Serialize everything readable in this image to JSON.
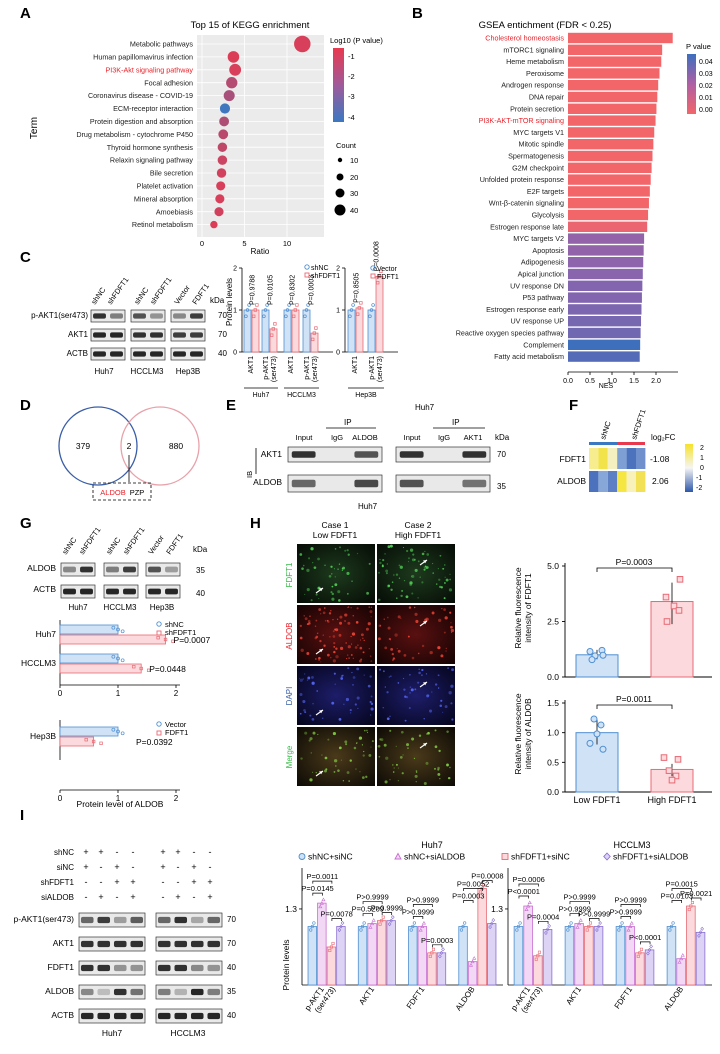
{
  "panels": {
    "A": {
      "letter": "A",
      "title": "Top 15 of KEGG enrichment",
      "ylabel": "Term",
      "xlabel": "Ratio",
      "legend_color_title": "Log10 (P value)",
      "legend_color_ticks": [
        "-1",
        "-2",
        "-3",
        "-4"
      ],
      "legend_size_title": "Count",
      "legend_size_values": [
        "10",
        "20",
        "30",
        "40"
      ],
      "highlight_color": "#e8232b"
    },
    "B": {
      "letter": "B",
      "title": "GSEA entichment (FDR < 0.25)",
      "xlabel": "NES",
      "legend_title": "P value",
      "legend_ticks": [
        "0.04",
        "0.03",
        "0.02",
        "0.01",
        "0.00"
      ]
    },
    "C": {
      "letter": "C",
      "blot_lanes": [
        "shNC",
        "shFDFT1",
        "shNC",
        "shFDFT1",
        "Vector",
        "FDFT1"
      ],
      "blot_rows": [
        "p-AKT1(ser473)",
        "AKT1",
        "ACTB"
      ],
      "blot_kda": [
        "70",
        "70",
        "40"
      ],
      "kda_label": "kDa",
      "cell_lines": [
        "Huh7",
        "HCCLM3",
        "Hep3B"
      ],
      "ylabel": "Protein levels",
      "legend1": [
        "shNC",
        "shFDFT1"
      ],
      "legend2": [
        "Vector",
        "FDFT1"
      ],
      "pvalues": [
        "P=0.9788",
        "P=0.0105",
        "P=0.8302",
        "P=0.0003",
        "P=0.8505",
        "P=0.0008"
      ],
      "group_labels": [
        "AKT1",
        "p-AKT1 (ser473)"
      ],
      "sub_labels": [
        "Huh7",
        "HCCLM3",
        "Hep3B"
      ]
    },
    "D": {
      "letter": "D",
      "left_count": "379",
      "overlap_count": "2",
      "right_count": "880",
      "genes": [
        "ALDOB",
        "PZP"
      ]
    },
    "E": {
      "letter": "E",
      "top_label": "Huh7",
      "bottom_label": "Huh7",
      "ib_label": "IB",
      "ip_label": "IP",
      "lanes_left": [
        "Input",
        "IgG",
        "ALDOB"
      ],
      "lanes_right": [
        "Input",
        "IgG",
        "AKT1"
      ],
      "rows": [
        "AKT1",
        "ALDOB"
      ],
      "kda_label": "kDa",
      "kda": [
        "70",
        "35"
      ]
    },
    "F": {
      "letter": "F",
      "columns": [
        "shNC",
        "shFDFT1"
      ],
      "rows": [
        "FDFT1",
        "ALDOB"
      ],
      "log2fc_title": "log₂FC",
      "log2fc_values": [
        "-1.08",
        "2.06"
      ],
      "scale_ticks": [
        "2",
        "1",
        "0",
        "-1",
        "-2"
      ]
    },
    "G": {
      "letter": "G",
      "blot_lanes": [
        "shNC",
        "shFDFT1",
        "shNC",
        "shFDFT1",
        "Vector",
        "FDFT1"
      ],
      "blot_rows": [
        "ALDOB",
        "ACTB"
      ],
      "kda_label": "kDa",
      "kda": [
        "35",
        "40"
      ],
      "cell_lines": [
        "Huh7",
        "HCCLM3",
        "Hep3B"
      ],
      "legend1": [
        "shNC",
        "shFDFT1"
      ],
      "legend2": [
        "Vector",
        "FDFT1"
      ],
      "pvalues": [
        "P=0.0007",
        "P=0.0448",
        "P=0.0392"
      ],
      "xticks": [
        "0",
        "1",
        "2"
      ],
      "xlabel": "Protein level of ALDOB"
    },
    "H": {
      "letter": "H",
      "case1": [
        "Case 1",
        "Low FDFT1"
      ],
      "case2": [
        "Case 2",
        "High FDFT1"
      ],
      "row_labels": [
        "FDFT1",
        "ALDOB",
        "DAPI",
        "Merge"
      ],
      "chart1_ylabel": [
        "Relative fluorescence",
        "intensity of FDFT1"
      ],
      "chart1_yticks": [
        "0.0",
        "2.5",
        "5.0"
      ],
      "chart1_p": "P=0.0003",
      "chart2_ylabel": [
        "Relative fluorescence",
        "intensity of ALDOB"
      ],
      "chart2_yticks": [
        "0.0",
        "0.5",
        "1.0",
        "1.5"
      ],
      "chart2_p": "P=0.0011",
      "xcats": [
        "Low FDFT1",
        "High FDFT1"
      ]
    },
    "I": {
      "letter": "I",
      "conditions": [
        "shNC",
        "siNC",
        "shFDFT1",
        "siALDOB"
      ],
      "signs_group": [
        [
          "+",
          "+",
          "-",
          "-"
        ],
        [
          "+",
          "-",
          "+",
          "-"
        ],
        [
          "-",
          "-",
          "+",
          "+"
        ],
        [
          "-",
          "+",
          "-",
          "+"
        ]
      ],
      "blot_rows": [
        "p-AKT1(ser473)",
        "AKT1",
        "FDFT1",
        "ALDOB",
        "ACTB"
      ],
      "blot_kda": [
        "70",
        "70",
        "40",
        "35",
        "40"
      ],
      "cell_lines": [
        "Huh7",
        "HCCLM3"
      ],
      "legend": [
        "shNC+siNC",
        "shNC+siALDOB",
        "shFDFT1+siNC",
        "shFDFT1+siALDOB"
      ],
      "ylabel": "Protein levels",
      "ytick": "1.3",
      "categories": [
        "p-AKT1 (ser473)",
        "AKT1",
        "FDFT1",
        "ALDOB"
      ],
      "chart_titles": [
        "Huh7",
        "HCCLM3"
      ],
      "huh7_p": [
        "P=0.0145",
        "P=0.0011",
        "P=0.0078",
        "P=0.5209",
        "P>0.9999",
        "P>0.9999",
        "P>0.9999",
        "P>0.9999",
        "P=0.0003",
        "P=0.0003",
        "P=0.0052",
        "P=0.0008"
      ],
      "hcclm3_p": [
        "P<0.0001",
        "P=0.0006",
        "P=0.0004",
        "P>0.9999",
        "P>0.9999",
        "P>0.9999",
        "P>0.9999",
        "P>0.9999",
        "P<0.0001",
        "P=0.0103",
        "P=0.0015",
        "P=0.0021"
      ]
    }
  },
  "chart_data": [
    {
      "type": "scatter",
      "title": "Top 15 of KEGG enrichment",
      "xlabel": "Ratio",
      "ylabel": "Term",
      "xlim": [
        0,
        14
      ],
      "xticks": [
        0,
        5,
        10
      ],
      "categories": [
        "Metabolic pathways",
        "Human papillomavirus infection",
        "PI3K-Akt signaling pathway",
        "Focal adhesion",
        "Coronavirus disease - COVID-19",
        "ECM-receptor interaction",
        "Protein digestion and absorption",
        "Drug metabolism - cytochrome P450",
        "Thyroid hormone synthesis",
        "Relaxin signaling pathway",
        "Bile secretion",
        "Platelet activation",
        "Mineral absorption",
        "Amoebiasis",
        "Retinol metabolism"
      ],
      "x": [
        11.8,
        3.7,
        3.9,
        3.5,
        3.2,
        2.7,
        2.6,
        2.5,
        2.4,
        2.4,
        2.3,
        2.2,
        2.1,
        2.0,
        1.4
      ],
      "log10p": [
        -1.3,
        -1.2,
        -1.3,
        -1.9,
        -2.1,
        -3.9,
        -2.0,
        -1.8,
        -1.7,
        -1.5,
        -1.4,
        -1.3,
        -1.3,
        -1.4,
        -1.2
      ],
      "count": [
        40,
        16,
        17,
        15,
        14,
        11,
        10,
        10,
        9,
        9,
        9,
        8,
        8,
        8,
        4
      ]
    },
    {
      "type": "bar",
      "orientation": "horizontal",
      "title": "GSEA entichment (FDR < 0.25)",
      "xlabel": "NES",
      "xlim": [
        0,
        2.5
      ],
      "xticks": [
        "0.0",
        "0.5",
        "1.0",
        "1.5",
        "2.0"
      ],
      "categories": [
        "Cholesterol homeostasis",
        "mTORC1 signaling",
        "Heme metabolism",
        "Peroxisome",
        "Androgen response",
        "DNA repair",
        "Protein secretion",
        "PI3K-AKT-mTOR signaling",
        "MYC targets V1",
        "Mitotic spindle",
        "Spermatogenesis",
        "G2M checkpoint",
        "Unfolded protein response",
        "E2F targets",
        "Wnt-β-catenin signaling",
        "Glycolysis",
        "Estrogen response late",
        "MYC targets V2",
        "Apoptosis",
        "Adipogenesis",
        "Apical junction",
        "UV response DN",
        "P53 pathway",
        "Estrogen response early",
        "UV response UP",
        "Reactive oxygen species pathway",
        "Complement",
        "Fatty acid metabolism"
      ],
      "values": [
        2.38,
        2.14,
        2.12,
        2.08,
        2.05,
        2.03,
        2.01,
        1.99,
        1.96,
        1.94,
        1.92,
        1.9,
        1.88,
        1.86,
        1.84,
        1.82,
        1.8,
        1.73,
        1.72,
        1.71,
        1.7,
        1.69,
        1.68,
        1.67,
        1.66,
        1.65,
        1.64,
        1.63
      ],
      "pvalue": [
        0.0,
        0.0,
        0.0,
        0.0,
        0.0,
        0.0,
        0.0,
        0.0,
        0.0,
        0.0,
        0.0,
        0.0,
        0.0,
        0.0,
        0.0,
        0.0,
        0.002,
        0.025,
        0.025,
        0.026,
        0.027,
        0.028,
        0.028,
        0.029,
        0.03,
        0.031,
        0.04,
        0.036
      ]
    },
    {
      "type": "bar",
      "title": "",
      "ylabel": "Protein levels",
      "groups": [
        "Huh7 AKT1",
        "Huh7 p-AKT1 (ser473)",
        "HCCLM3 AKT1",
        "HCCLM3 p-AKT1 (ser473)",
        "Hep3B AKT1",
        "Hep3B p-AKT1 (ser473)"
      ],
      "series": [
        {
          "name": "shNC / Vector",
          "values": [
            1.0,
            1.0,
            1.0,
            1.0,
            1.0,
            1.0
          ]
        },
        {
          "name": "shFDFT1 / FDFT1",
          "values": [
            1.0,
            0.55,
            1.0,
            0.45,
            1.05,
            1.8
          ]
        }
      ],
      "ylim": [
        0,
        2
      ]
    },
    {
      "type": "bar",
      "orientation": "horizontal",
      "xlabel": "Protein level of ALDOB",
      "xlim": [
        0,
        2
      ],
      "categories": [
        "Huh7",
        "HCCLM3",
        "Hep3B"
      ],
      "series": [
        {
          "name": "shNC / Vector",
          "values": [
            1.0,
            1.0,
            1.0
          ]
        },
        {
          "name": "shFDFT1 / FDFT1",
          "values": [
            1.82,
            1.4,
            0.58
          ]
        }
      ]
    },
    {
      "type": "bar",
      "ylabel": "Relative fluorescence intensity of FDFT1",
      "categories": [
        "Low FDFT1",
        "High FDFT1"
      ],
      "values": [
        1.0,
        3.4
      ],
      "ylim": [
        0,
        5
      ]
    },
    {
      "type": "bar",
      "ylabel": "Relative fluorescence intensity of ALDOB",
      "categories": [
        "Low FDFT1",
        "High FDFT1"
      ],
      "values": [
        1.0,
        0.38
      ],
      "ylim": [
        0,
        1.5
      ]
    },
    {
      "type": "bar",
      "title": "Huh7",
      "ylabel": "Protein levels",
      "categories": [
        "p-AKT1 (ser473)",
        "AKT1",
        "FDFT1",
        "ALDOB"
      ],
      "series": [
        {
          "name": "shNC+siNC",
          "values": [
            1.0,
            1.0,
            1.0,
            1.0
          ]
        },
        {
          "name": "shNC+siALDOB",
          "values": [
            1.4,
            1.05,
            1.0,
            0.4
          ]
        },
        {
          "name": "shFDFT1+siNC",
          "values": [
            0.65,
            1.1,
            0.55,
            1.65
          ]
        },
        {
          "name": "shFDFT1+siALDOB",
          "values": [
            1.0,
            1.1,
            0.55,
            1.05
          ]
        }
      ]
    },
    {
      "type": "bar",
      "title": "HCCLM3",
      "ylabel": "Protein levels",
      "categories": [
        "p-AKT1 (ser473)",
        "AKT1",
        "FDFT1",
        "ALDOB"
      ],
      "series": [
        {
          "name": "shNC+siNC",
          "values": [
            1.0,
            1.0,
            1.0,
            1.0
          ]
        },
        {
          "name": "shNC+siALDOB",
          "values": [
            1.35,
            1.05,
            1.0,
            0.45
          ]
        },
        {
          "name": "shFDFT1+siNC",
          "values": [
            0.5,
            1.0,
            0.55,
            1.35
          ]
        },
        {
          "name": "shFDFT1+siALDOB",
          "values": [
            0.95,
            1.0,
            0.6,
            0.9
          ]
        }
      ]
    }
  ]
}
